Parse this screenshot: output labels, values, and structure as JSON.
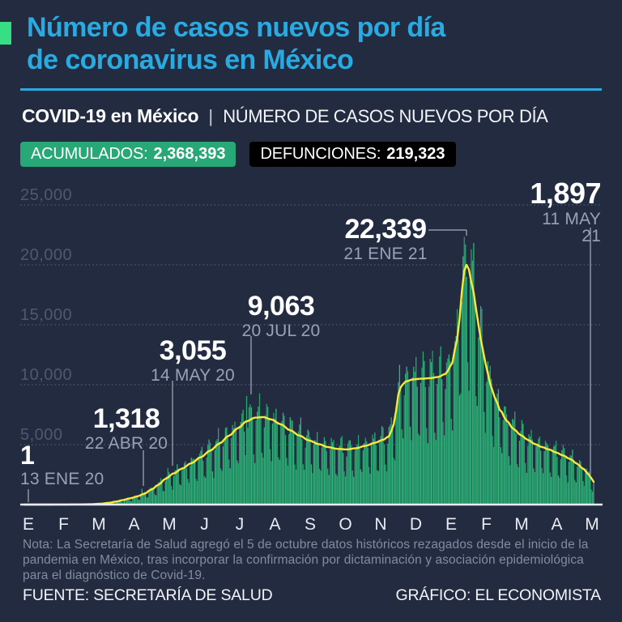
{
  "colors": {
    "background": "#222B40",
    "accent_cyan": "#29ABE2",
    "accent_green": "#36DF84",
    "bar_green": "#2DB077",
    "avg_line_yellow": "#F7EA3C",
    "badge_green": "#28A877",
    "badge_black": "#000000",
    "muted_label": "#4E586F",
    "annotation_date_gray": "#99A1B6"
  },
  "header": {
    "title_line1": "Número de casos nuevos por día",
    "title_line2": "de coronavirus en México",
    "subtitle_bold": "COVID-19 en México",
    "subtitle_separator": "|",
    "subtitle_rest": "NÚMERO DE CASOS NUEVOS POR DÍA",
    "badges": [
      {
        "label": "ACUMULADOS:",
        "value": "2,368,393",
        "bg": "#28A877"
      },
      {
        "label": "DEFUNCIONES:",
        "value": "219,323",
        "bg": "#000000"
      }
    ]
  },
  "chart_data": {
    "type": "bar",
    "title": "Número de casos nuevos por día de coronavirus en México",
    "xlabel": "",
    "ylabel": "casos nuevos por día",
    "ylim": [
      0,
      25000
    ],
    "grid": "dotted-horizontal",
    "legend": "none",
    "x_range": [
      "13 ENE 20",
      "11 MAY 21"
    ],
    "days": 484,
    "x_labels": [
      "E",
      "F",
      "M",
      "A",
      "M",
      "J",
      "J",
      "A",
      "S",
      "O",
      "N",
      "D",
      "E",
      "F",
      "M",
      "A",
      "M"
    ],
    "y_ticks": [
      "25,000",
      "20,000",
      "15,000",
      "10,000",
      "5,000"
    ],
    "y_tick_values": [
      25000,
      20000,
      15000,
      10000,
      5000
    ],
    "series": [
      {
        "name": "casos diarios (barras)",
        "style": "bars-green"
      },
      {
        "name": "promedio suavizado (línea)",
        "style": "line-yellow"
      }
    ],
    "avg_line_points": [
      [
        0,
        1
      ],
      [
        15,
        2
      ],
      [
        30,
        5
      ],
      [
        45,
        12
      ],
      [
        55,
        25
      ],
      [
        65,
        70
      ],
      [
        72,
        150
      ],
      [
        78,
        250
      ],
      [
        84,
        380
      ],
      [
        90,
        520
      ],
      [
        96,
        680
      ],
      [
        102,
        900
      ],
      [
        108,
        1250
      ],
      [
        114,
        1650
      ],
      [
        120,
        2150
      ],
      [
        127,
        2600
      ],
      [
        134,
        3000
      ],
      [
        142,
        3450
      ],
      [
        150,
        3950
      ],
      [
        158,
        4500
      ],
      [
        166,
        5100
      ],
      [
        174,
        5750
      ],
      [
        182,
        6400
      ],
      [
        189,
        6950
      ],
      [
        196,
        7250
      ],
      [
        203,
        7300
      ],
      [
        210,
        7100
      ],
      [
        218,
        6700
      ],
      [
        226,
        6200
      ],
      [
        234,
        5750
      ],
      [
        242,
        5350
      ],
      [
        250,
        5050
      ],
      [
        258,
        4800
      ],
      [
        266,
        4650
      ],
      [
        274,
        4600
      ],
      [
        282,
        4700
      ],
      [
        290,
        4900
      ],
      [
        298,
        5150
      ],
      [
        305,
        5400
      ],
      [
        310,
        5700
      ],
      [
        313,
        6300
      ],
      [
        316,
        7800
      ],
      [
        318,
        9200
      ],
      [
        321,
        10000
      ],
      [
        325,
        10300
      ],
      [
        331,
        10450
      ],
      [
        338,
        10500
      ],
      [
        345,
        10550
      ],
      [
        352,
        10650
      ],
      [
        358,
        10900
      ],
      [
        363,
        11600
      ],
      [
        367,
        13200
      ],
      [
        370,
        15500
      ],
      [
        372,
        17800
      ],
      [
        374,
        19500
      ],
      [
        376,
        20000
      ],
      [
        378,
        19600
      ],
      [
        381,
        18200
      ],
      [
        384,
        16300
      ],
      [
        388,
        13800
      ],
      [
        392,
        11800
      ],
      [
        396,
        10100
      ],
      [
        400,
        8900
      ],
      [
        405,
        7800
      ],
      [
        410,
        7000
      ],
      [
        416,
        6300
      ],
      [
        422,
        5800
      ],
      [
        428,
        5400
      ],
      [
        434,
        5050
      ],
      [
        440,
        4800
      ],
      [
        446,
        4600
      ],
      [
        452,
        4350
      ],
      [
        458,
        4100
      ],
      [
        464,
        3800
      ],
      [
        470,
        3400
      ],
      [
        475,
        3000
      ],
      [
        479,
        2600
      ],
      [
        482,
        2200
      ],
      [
        484,
        1900
      ]
    ],
    "weekly_factors": [
      0.52,
      0.95,
      1.08,
      1.13,
      1.17,
      0.98,
      0.6
    ],
    "max_daily_value": 22339,
    "annotated_points": [
      {
        "value": "1",
        "date": "13 ENE 20",
        "day": 0,
        "y": 1
      },
      {
        "value": "1,318",
        "date": "22 ABR 20",
        "day": 100,
        "y": 1318
      },
      {
        "value": "3,055",
        "date": "14 MAY 20",
        "day": 122,
        "y": 3055
      },
      {
        "value": "9,063",
        "date": "20 JUL 20",
        "day": 189,
        "y": 9063
      },
      {
        "value": "22,339",
        "date": "21 ENE 21",
        "day": 374,
        "y": 22339
      },
      {
        "value": "1,897",
        "date": "11 MAY 21",
        "day": 484,
        "y": 1897
      }
    ]
  },
  "footer": {
    "note": "Nota: La Secretaría de Salud agregó el 5 de octubre datos históricos rezagados desde el inicio de la pandemia en México, tras incorporar la confirmación por dictaminación y asociación epidemiológica para el diagnóstico de Covid-19.",
    "source": "FUENTE: SECRETARÍA DE SALUD",
    "credit": "GRÁFICO: EL ECONOMISTA"
  }
}
